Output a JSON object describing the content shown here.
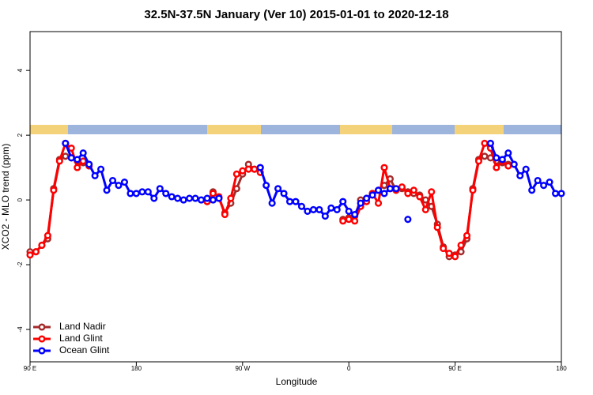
{
  "chart_data": {
    "type": "line",
    "title": "32.5N-37.5N January (Ver 10)   2015-01-01 to 2020-12-18",
    "x_label": "Longitude",
    "y_label": "XCO2 - MLO trend (ppm)",
    "xlim": [
      90,
      540
    ],
    "ylim": [
      -5,
      5.2
    ],
    "xticks": [
      {
        "value": 90,
        "label": "90 E"
      },
      180,
      {
        "value": 270,
        "label": "90 W"
      },
      {
        "value": 360,
        "label": "0"
      },
      {
        "value": 450,
        "label": "90 E"
      },
      {
        "value": 540,
        "label": "180"
      }
    ],
    "yticks": [
      -4,
      -2,
      0,
      2,
      4
    ],
    "legend": "bottom-left",
    "x": [
      90,
      95,
      100,
      105,
      110,
      115,
      120,
      125,
      130,
      135,
      140,
      145,
      150,
      155,
      160,
      165,
      170,
      175,
      180,
      185,
      190,
      195,
      200,
      205,
      210,
      215,
      220,
      225,
      230,
      235,
      240,
      245,
      250,
      255,
      260,
      265,
      270,
      275,
      280,
      285,
      290,
      295,
      300,
      305,
      310,
      315,
      320,
      325,
      330,
      335,
      340,
      345,
      350,
      355,
      360,
      365,
      370,
      375,
      380,
      385,
      390,
      395,
      400,
      405,
      410,
      415,
      420,
      425,
      430,
      435,
      440,
      445,
      450,
      455,
      460,
      465,
      470,
      475,
      480,
      485,
      490,
      495,
      500,
      505,
      510,
      515,
      520,
      525,
      530,
      535,
      540
    ],
    "series": [
      {
        "name": "Land Nadir",
        "color": "#a52a2a",
        "values": [
          -1.6,
          -1.6,
          -1.4,
          -1.2,
          0.35,
          1.25,
          1.35,
          1.3,
          1.2,
          1.15,
          1.1,
          null,
          null,
          null,
          null,
          null,
          null,
          null,
          null,
          null,
          null,
          null,
          null,
          null,
          null,
          null,
          null,
          null,
          null,
          null,
          -0.05,
          0.25,
          0.05,
          -0.4,
          -0.1,
          0.35,
          0.8,
          1.1,
          0.95,
          1.0,
          null,
          null,
          null,
          null,
          null,
          null,
          null,
          null,
          null,
          null,
          null,
          null,
          null,
          -0.6,
          -0.55,
          -0.5,
          0.0,
          0.05,
          0.2,
          0.3,
          0.45,
          0.65,
          0.3,
          0.35,
          0.25,
          0.2,
          0.15,
          0.0,
          -0.2,
          -0.75,
          -1.45,
          -1.75,
          -1.7,
          -1.6,
          -1.2,
          0.35,
          1.25,
          1.35,
          1.3,
          1.2,
          1.15,
          1.1,
          null,
          null,
          null,
          null,
          null,
          null,
          null,
          null,
          null
        ]
      },
      {
        "name": "Land Glint",
        "color": "#ff0000",
        "values": [
          -1.7,
          -1.6,
          -1.4,
          -1.1,
          0.3,
          1.2,
          1.75,
          1.6,
          1.0,
          1.2,
          1.05,
          null,
          null,
          null,
          null,
          null,
          null,
          null,
          null,
          null,
          null,
          null,
          null,
          null,
          null,
          null,
          null,
          null,
          null,
          null,
          -0.05,
          0.2,
          0.1,
          -0.45,
          0.05,
          0.8,
          0.9,
          0.95,
          0.95,
          0.85,
          null,
          null,
          null,
          null,
          null,
          null,
          null,
          null,
          null,
          null,
          null,
          null,
          null,
          -0.65,
          -0.6,
          -0.65,
          -0.2,
          -0.05,
          0.2,
          -0.1,
          1.0,
          0.35,
          0.3,
          0.4,
          0.2,
          0.3,
          0.1,
          -0.3,
          0.25,
          -0.85,
          -1.5,
          -1.65,
          -1.75,
          -1.4,
          -1.1,
          0.3,
          1.2,
          1.75,
          1.6,
          1.0,
          1.2,
          1.05,
          null,
          null,
          null,
          null,
          null,
          null,
          null,
          null,
          null
        ]
      },
      {
        "name": "Ocean Glint",
        "color": "#0000ff",
        "values": [
          null,
          null,
          null,
          null,
          null,
          null,
          1.75,
          1.3,
          1.25,
          1.45,
          1.1,
          0.75,
          0.95,
          0.3,
          0.6,
          0.45,
          0.55,
          0.2,
          0.2,
          0.25,
          0.25,
          0.05,
          0.35,
          0.2,
          0.1,
          0.05,
          0.0,
          0.05,
          0.05,
          0.0,
          0.05,
          0.0,
          0.05,
          null,
          null,
          null,
          null,
          null,
          null,
          1.0,
          0.45,
          -0.1,
          0.35,
          0.2,
          -0.05,
          -0.05,
          -0.2,
          -0.35,
          -0.3,
          -0.3,
          -0.5,
          -0.25,
          -0.3,
          -0.05,
          -0.35,
          -0.45,
          -0.1,
          0.05,
          0.15,
          0.3,
          0.2,
          0.35,
          0.35,
          null,
          -0.6,
          null,
          null,
          null,
          null,
          null,
          null,
          null,
          null,
          null,
          null,
          null,
          null,
          null,
          1.75,
          1.3,
          1.25,
          1.45,
          1.1,
          0.75,
          0.95,
          0.3,
          0.6,
          0.45,
          0.55,
          0.2,
          0.2
        ]
      }
    ]
  }
}
